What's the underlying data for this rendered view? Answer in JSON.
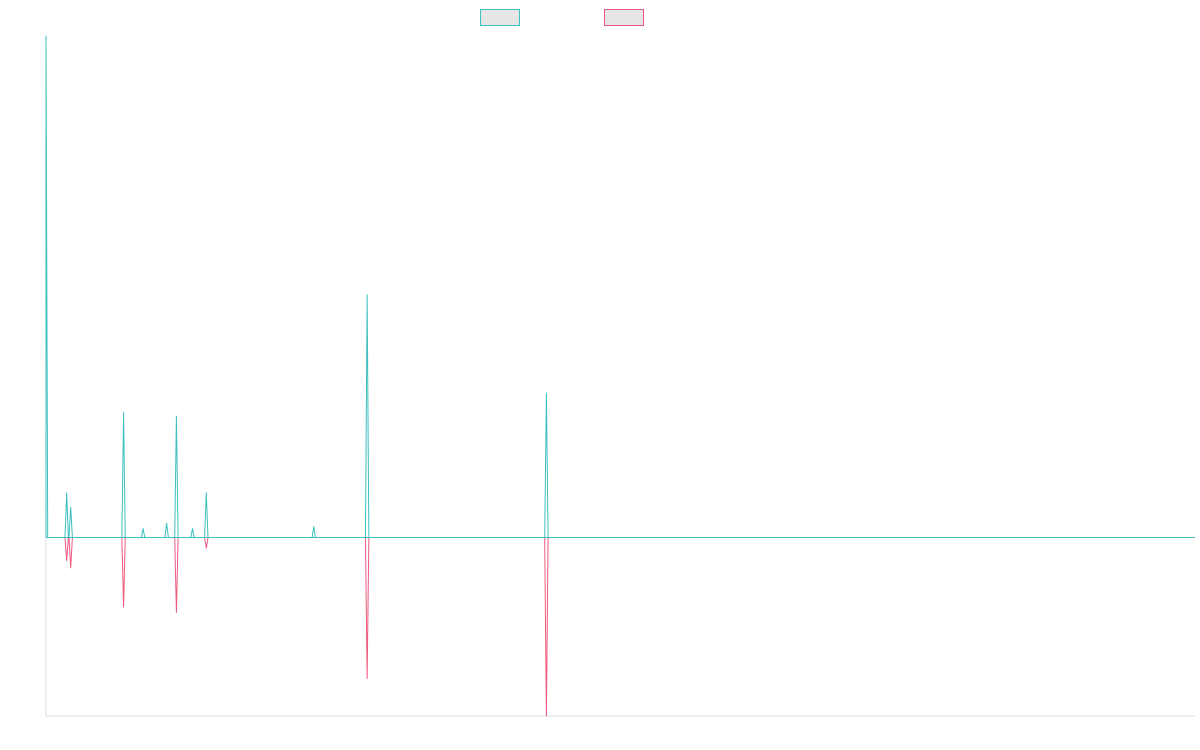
{
  "chart_data": {
    "type": "line",
    "title": "",
    "xlabel": "",
    "ylabel": "",
    "grid": false,
    "legend_position": "top-center",
    "x_domain": [
      0,
      1000
    ],
    "y_domain": [
      -100,
      281
    ],
    "series": [
      {
        "name": "",
        "color": "#3fbfbf",
        "peaks": [
          {
            "x": 0.0,
            "value": 281
          },
          {
            "x": 18.0,
            "value": 25
          },
          {
            "x": 21.5,
            "value": 17
          },
          {
            "x": 67.5,
            "value": 70
          },
          {
            "x": 84.5,
            "value": 5
          },
          {
            "x": 105.0,
            "value": 8
          },
          {
            "x": 113.5,
            "value": 68
          },
          {
            "x": 127.5,
            "value": 5
          },
          {
            "x": 139.5,
            "value": 25
          },
          {
            "x": 233.0,
            "value": 6
          },
          {
            "x": 279.5,
            "value": 136
          },
          {
            "x": 435.5,
            "value": 81
          }
        ]
      },
      {
        "name": "",
        "color": "#ee5a7e",
        "peaks": [
          {
            "x": 18.0,
            "value": -13
          },
          {
            "x": 21.5,
            "value": -17
          },
          {
            "x": 67.5,
            "value": -39
          },
          {
            "x": 113.5,
            "value": -42
          },
          {
            "x": 139.5,
            "value": -6
          },
          {
            "x": 279.5,
            "value": -79
          },
          {
            "x": 435.5,
            "value": -100
          }
        ]
      }
    ]
  },
  "colors": {
    "axis": "#dddddd",
    "baseline": "#3fbfbf",
    "swatch_fill": "#e6e6e6"
  }
}
